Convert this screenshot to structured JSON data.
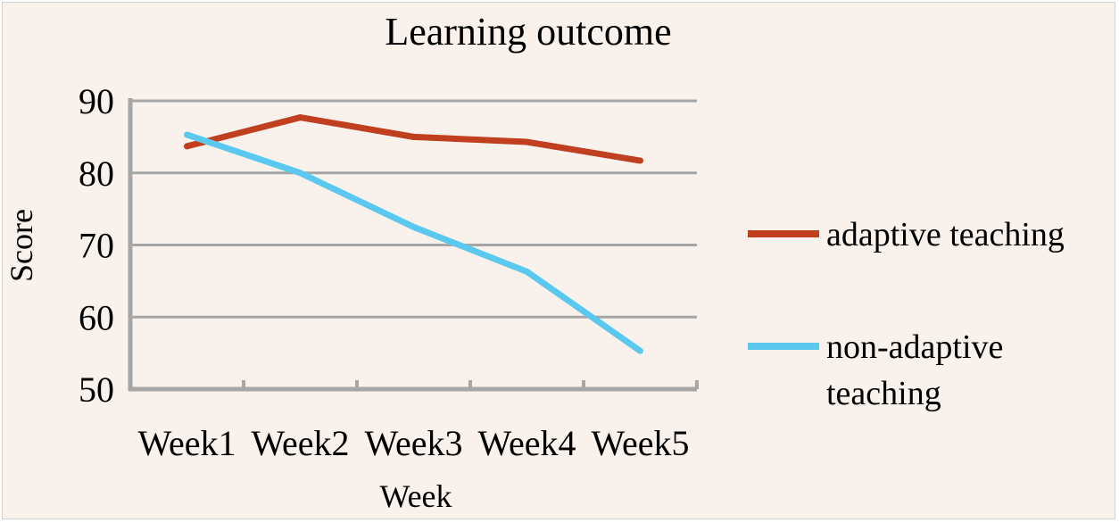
{
  "chart_data": {
    "type": "line",
    "title": "Learning outcome",
    "xlabel": "Week",
    "ylabel": "Score",
    "categories": [
      "Week1",
      "Week2",
      "Week3",
      "Week4",
      "Week5"
    ],
    "ylim": [
      50,
      90
    ],
    "yticks": [
      50,
      60,
      70,
      80,
      90
    ],
    "grid": true,
    "legend_position": "right",
    "series": [
      {
        "name": "adaptive teaching",
        "values": [
          83.7,
          87.7,
          85.0,
          84.3,
          81.7
        ],
        "color": "#bf3f1f"
      },
      {
        "name": "non-adaptive teaching",
        "values": [
          85.3,
          80.0,
          72.5,
          66.3,
          55.3
        ],
        "color": "#5bc8ef"
      }
    ]
  },
  "legend": {
    "items": [
      {
        "lines": [
          "adaptive teaching"
        ]
      },
      {
        "lines": [
          "non-adaptive",
          "teaching"
        ]
      }
    ]
  }
}
